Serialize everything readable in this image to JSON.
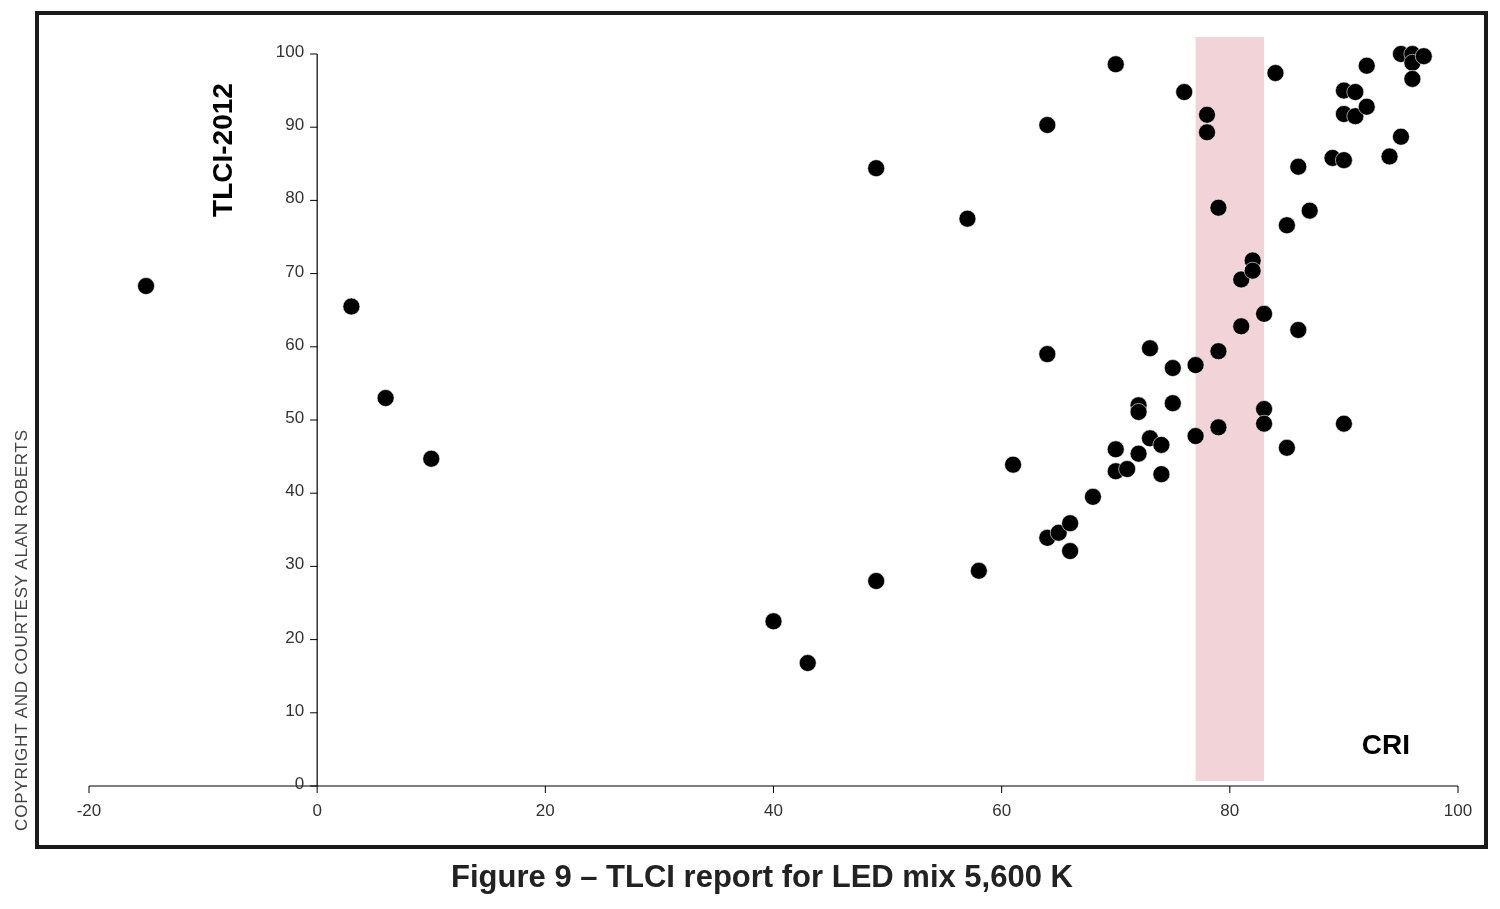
{
  "chart_data": {
    "type": "scatter",
    "title": "Figure 9 – TLCI report for LED mix 5,600 K",
    "xlabel": "CRI",
    "ylabel": "TLCI-2012",
    "annotations": [
      "COPYRIGHT AND COURTESY ALAN ROBERTS"
    ],
    "xlim": [
      -20,
      100
    ],
    "xticks": [
      -20,
      0,
      20,
      40,
      60,
      80,
      100
    ],
    "ylim": [
      0,
      100
    ],
    "yticks": [
      0,
      10,
      20,
      30,
      40,
      50,
      60,
      70,
      80,
      90,
      100
    ],
    "grid": false,
    "marker": "circle",
    "bands": [
      {
        "axis": "x",
        "from": 77,
        "to": 83,
        "color": "#f2d3d8"
      }
    ],
    "series": [
      {
        "color": "#000000",
        "x": [
          -15,
          3,
          6,
          10,
          40,
          43,
          49,
          49,
          57,
          58,
          61,
          64,
          64,
          64,
          65,
          66,
          66,
          68,
          70,
          70,
          70,
          71,
          72,
          72,
          72,
          73,
          73,
          74,
          74,
          75,
          75,
          76,
          77,
          77,
          78,
          78,
          79,
          79,
          79,
          81,
          81,
          82,
          82,
          83,
          83,
          83,
          84,
          85,
          85,
          86,
          86,
          87,
          89,
          90,
          90,
          90,
          90,
          91,
          91,
          92,
          92,
          94,
          95,
          95,
          96,
          96,
          96,
          97
        ],
        "values": [
          68.3,
          65.5,
          53,
          44.7,
          22.5,
          16.8,
          28,
          84.4,
          77.5,
          29.4,
          43.9,
          90.3,
          59,
          33.9,
          34.6,
          35.9,
          32.1,
          39.5,
          98.6,
          46,
          43,
          43.3,
          52,
          51.1,
          45.4,
          59.8,
          47.5,
          46.6,
          42.6,
          57.1,
          52.3,
          94.8,
          57.5,
          47.8,
          91.7,
          89.3,
          79,
          59.4,
          49,
          69.2,
          62.8,
          71.8,
          70.4,
          64.5,
          51.5,
          49.5,
          97.4,
          46.2,
          76.6,
          84.6,
          62.3,
          78.6,
          85.8,
          85.5,
          95,
          91.8,
          49.5,
          94.8,
          91.5,
          98.4,
          92.8,
          86,
          100,
          88.7,
          100,
          98.8,
          96.6,
          99.7
        ]
      }
    ]
  }
}
